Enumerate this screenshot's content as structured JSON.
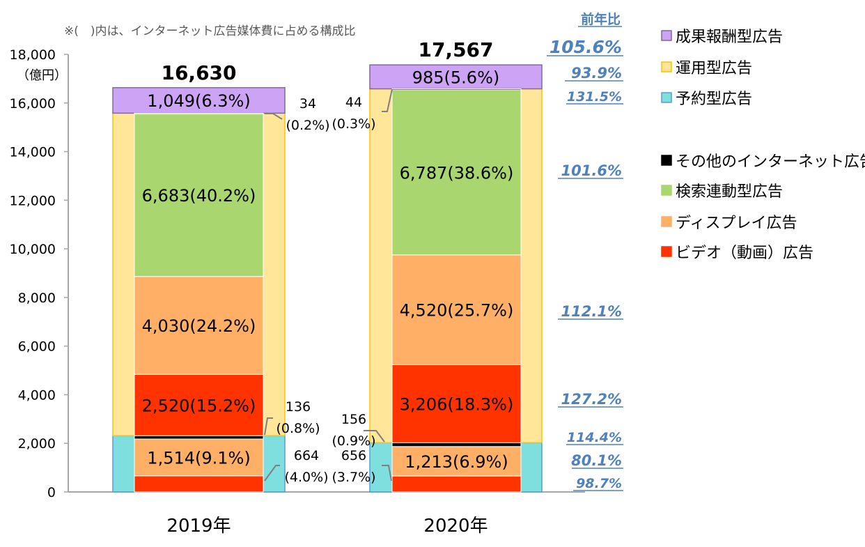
{
  "chart_data": {
    "type": "bar",
    "stacked": true,
    "note": "※(　)内は、インターネット広告媒体費に占める構成比",
    "unit_label": "（億円）",
    "categories": [
      "2019年",
      "2020年"
    ],
    "ylim": [
      0,
      18000
    ],
    "yticks": [
      0,
      2000,
      4000,
      6000,
      8000,
      10000,
      12000,
      14000,
      16000,
      18000
    ],
    "ytick_labels": [
      "0",
      "2,000",
      "4,000",
      "6,000",
      "8,000",
      "10,000",
      "12,000",
      "14,000",
      "16,000",
      "18,000"
    ],
    "grid": false,
    "totals": [
      16630,
      17567
    ],
    "total_labels": [
      "16,630",
      "17,567"
    ],
    "outer_groups": [
      {
        "name": "予約型広告",
        "values": [
          2314,
          2025
        ],
        "color": "#7FDFDF",
        "border": "#5B9BD5"
      },
      {
        "name": "運用型広告",
        "values": [
          13267,
          14557
        ],
        "color": "#FFE699",
        "border": "#FFC000"
      },
      {
        "name": "成果報酬型広告",
        "values": [
          1049,
          985
        ],
        "color": "#CCA3F5",
        "border": "#7F6A99"
      }
    ],
    "series": [
      {
        "group": "予約型広告",
        "type": "ビデオ（動画）広告",
        "values": [
          664,
          656
        ],
        "labels": [
          "664",
          "656"
        ],
        "shares": [
          "(4.0%)",
          "(3.7%)"
        ],
        "color": "#FF3300"
      },
      {
        "group": "予約型広告",
        "type": "ディスプレイ広告",
        "values": [
          1514,
          1213
        ],
        "labels": [
          "1,514(9.1%)",
          "1,213(6.9%)"
        ],
        "color": "#FFB066"
      },
      {
        "group": "予約型広告",
        "type": "その他のインターネット広告",
        "values": [
          136,
          156
        ],
        "labels": [
          "136",
          "156"
        ],
        "shares": [
          "(0.8%)",
          "(0.9%)"
        ],
        "color": "#000000"
      },
      {
        "group": "運用型広告",
        "type": "ビデオ（動画）広告",
        "values": [
          2520,
          3206
        ],
        "labels": [
          "2,520(15.2%)",
          "3,206(18.3%)"
        ],
        "color": "#FF3300"
      },
      {
        "group": "運用型広告",
        "type": "ディスプレイ広告",
        "values": [
          4030,
          4520
        ],
        "labels": [
          "4,030(24.2%)",
          "4,520(25.7%)"
        ],
        "color": "#FFB066"
      },
      {
        "group": "運用型広告",
        "type": "検索連動型広告",
        "values": [
          6683,
          6787
        ],
        "labels": [
          "6,683(40.2%)",
          "6,787(38.6%)"
        ],
        "color": "#A9D66E"
      },
      {
        "group": "運用型広告",
        "type": "その他のインターネット広告",
        "values": [
          34,
          44
        ],
        "labels": [
          "34",
          "44"
        ],
        "shares": [
          "(0.2%)",
          "(0.3%)"
        ],
        "color": "#000000"
      },
      {
        "group": "成果報酬型広告",
        "type": "成果報酬型広告",
        "values": [
          1049,
          985
        ],
        "labels": [
          "1,049(6.3%)",
          "985(5.6%)"
        ],
        "color": "#CCA3F5"
      }
    ],
    "yoy": {
      "title": "前年比",
      "color": "#4F81BD",
      "items": [
        {
          "label": "105.6%",
          "for": "合計"
        },
        {
          "label": "93.9%",
          "for": "成果報酬型広告"
        },
        {
          "label": "131.5%",
          "for": "運用型その他"
        },
        {
          "label": "101.6%",
          "for": "検索連動型広告"
        },
        {
          "label": "112.1%",
          "for": "運用型ディスプレイ"
        },
        {
          "label": "127.2%",
          "for": "運用型ビデオ"
        },
        {
          "label": "114.4%",
          "for": "予約型その他"
        },
        {
          "label": "80.1%",
          "for": "予約型ディスプレイ"
        },
        {
          "label": "98.7%",
          "for": "予約型ビデオ"
        }
      ]
    },
    "legend": [
      {
        "label": "成果報酬型広告",
        "color": "#CCA3F5",
        "border": "#7F6A99"
      },
      {
        "label": "運用型広告",
        "color": "#FFE699",
        "border": "#FFC000"
      },
      {
        "label": "予約型広告",
        "color": "#7FDFDF",
        "border": "#5B9BD5"
      },
      {
        "label": "その他のインターネット広告",
        "color": "#000000"
      },
      {
        "label": "検索連動型広告",
        "color": "#A9D66E"
      },
      {
        "label": "ディスプレイ広告",
        "color": "#FFB066"
      },
      {
        "label": "ビデオ（動画）広告",
        "color": "#FF3300"
      }
    ],
    "legend_position": "right"
  }
}
